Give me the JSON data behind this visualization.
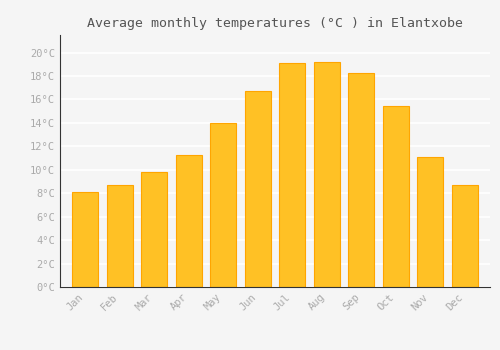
{
  "months": [
    "Jan",
    "Feb",
    "Mar",
    "Apr",
    "May",
    "Jun",
    "Jul",
    "Aug",
    "Sep",
    "Oct",
    "Nov",
    "Dec"
  ],
  "values": [
    8.1,
    8.7,
    9.8,
    11.3,
    14.0,
    16.7,
    19.1,
    19.2,
    18.3,
    15.4,
    11.1,
    8.7
  ],
  "bar_color": "#FFC125",
  "bar_edge_color": "#FFA500",
  "title": "Average monthly temperatures (°C ) in Elantxobe",
  "title_fontsize": 9.5,
  "ylabel_ticks": [
    "0°C",
    "2°C",
    "4°C",
    "6°C",
    "8°C",
    "10°C",
    "12°C",
    "14°C",
    "16°C",
    "18°C",
    "20°C"
  ],
  "ytick_values": [
    0,
    2,
    4,
    6,
    8,
    10,
    12,
    14,
    16,
    18,
    20
  ],
  "ylim": [
    0,
    21.5
  ],
  "background_color": "#f5f5f5",
  "grid_color": "#ffffff",
  "tick_label_color": "#aaaaaa",
  "title_color": "#555555",
  "font_family": "monospace",
  "bar_width": 0.75
}
